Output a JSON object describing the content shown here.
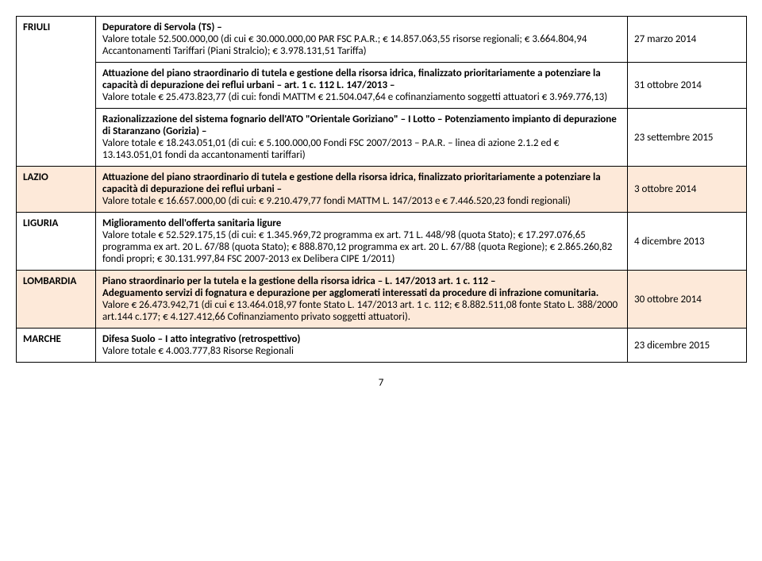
{
  "colors": {
    "highlight_bg": "#fde9d9",
    "border": "#000000",
    "text": "#000000",
    "page_bg": "#ffffff"
  },
  "typography": {
    "font_family": "Calibri, Arial, sans-serif",
    "base_size": 13
  },
  "rows": [
    {
      "region": "FRIULI",
      "items": [
        {
          "title": "Depuratore di Servola (TS) –",
          "body": "Valore totale 52.500.000,00 (di cui € 30.000.000,00 PAR FSC P.A.R.; € 14.857.063,55 risorse regionali; € 3.664.804,94 Accantonamenti Tariffari (Piani Stralcio); € 3.978.131,51 Tariffa)",
          "date": "27 marzo 2014"
        },
        {
          "title": "Attuazione del piano straordinario di tutela e gestione della risorsa idrica, finalizzato prioritariamente a potenziare la capacità di depurazione dei reflui urbani – art.  1  c.  112  L. 147/2013 –",
          "body": "Valore totale € 25.473.823,77 (di cui: fondi MATTM € 21.504.047,64 e cofinanziamento soggetti attuatori € 3.969.776,13)",
          "date": "31 ottobre 2014"
        },
        {
          "title": "Razionalizzazione del sistema fognario dell'ATO \"Orientale Goriziano\" – I Lotto – Potenziamento impianto di depurazione di Staranzano (Gorizia) –",
          "body": "Valore totale € 18.243.051,01 (di cui: € 5.100.000,00 Fondi FSC 2007/2013 – P.A.R. – linea di azione 2.1.2 ed € 13.143.051,01 fondi da accantonamenti tariffari)",
          "date": "23 settembre 2015"
        }
      ]
    },
    {
      "region": "LAZIO",
      "highlight": true,
      "items": [
        {
          "title": "Attuazione del piano straordinario di tutela e gestione della risorsa idrica, finalizzato prioritariamente a potenziare la capacità di depurazione dei reflui urbani –",
          "body": "Valore totale € 16.657.000,00 (di cui: € 9.210.479,77 fondi MATTM  L. 147/2013 e € 7.446.520,23 fondi regionali)",
          "date": "3 ottobre 2014"
        }
      ]
    },
    {
      "region": "LIGURIA",
      "items": [
        {
          "title": "Miglioramento dell'offerta sanitaria ligure",
          "body": "Valore totale € 52.529.175,15 (di cui: € 1.345.969,72 programma ex art. 71 L. 448/98 (quota Stato); € 17.297.076,65  programma ex art. 20 L. 67/88 (quota Stato); € 888.870,12 programma ex art. 20 L. 67/88 (quota Regione); € 2.865.260,82 fondi propri; € 30.131.997,84 FSC 2007-2013 ex Delibera CIPE 1/2011)",
          "date": "4 dicembre 2013"
        }
      ]
    },
    {
      "region": "LOMBARDIA",
      "highlight": true,
      "items": [
        {
          "title": "Piano straordinario per la tutela e la gestione della risorsa idrica – L. 147/2013 art.  1 c. 112 –",
          "title2": "Adeguamento servizi di fognatura e depurazione per agglomerati interessati da procedure di infrazione comunitaria.",
          "body": "Valore € 26.473.942,71 (di cui € 13.464.018,97 fonte Stato L. 147/2013 art. 1 c. 112; € 8.882.511,08 fonte Stato L. 388/2000 art.144 c.177; € 4.127.412,66 Cofinanziamento privato soggetti attuatori).",
          "date": "30 ottobre 2014"
        }
      ]
    },
    {
      "region": "MARCHE",
      "items": [
        {
          "title": "Difesa Suolo – I atto integrativo (retrospettivo)",
          "body": "Valore totale € 4.003.777,83 Risorse Regionali",
          "date": "23 dicembre 2015"
        }
      ]
    }
  ],
  "pageNumber": "7"
}
